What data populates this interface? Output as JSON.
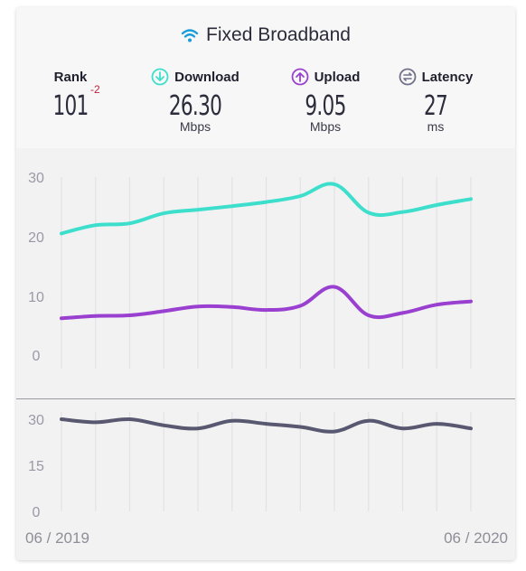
{
  "title": "Fixed Broadband",
  "metrics": {
    "rank": {
      "label": "Rank",
      "value": "101",
      "change": "-2"
    },
    "download": {
      "label": "Download",
      "value": "26.30",
      "unit": "Mbps",
      "color": "#3ddfcc"
    },
    "upload": {
      "label": "Upload",
      "value": "9.05",
      "unit": "Mbps",
      "color": "#9a40d0"
    },
    "latency": {
      "label": "Latency",
      "value": "27",
      "unit": "ms",
      "color": "#585870"
    }
  },
  "x_labels": {
    "start": "06 / 2019",
    "end": "06 / 2020"
  },
  "chart_data": [
    {
      "type": "line",
      "x": [
        "06/2019",
        "07/2019",
        "08/2019",
        "09/2019",
        "10/2019",
        "11/2019",
        "12/2019",
        "01/2020",
        "02/2020",
        "03/2020",
        "04/2020",
        "05/2020",
        "06/2020"
      ],
      "ylim": [
        0,
        30
      ],
      "yticks": [
        "30",
        "20",
        "10",
        "0"
      ],
      "grid": "vertical",
      "series": [
        {
          "name": "Download",
          "color": "#3ddfcc",
          "values": [
            20.5,
            21.9,
            22.2,
            23.9,
            24.5,
            25.1,
            25.8,
            26.8,
            28.8,
            24.0,
            24.1,
            25.3,
            26.3
          ]
        },
        {
          "name": "Upload",
          "color": "#9a40d0",
          "values": [
            6.2,
            6.6,
            6.7,
            7.4,
            8.2,
            8.1,
            7.6,
            8.3,
            11.5,
            6.7,
            7.1,
            8.5,
            9.05
          ]
        }
      ]
    },
    {
      "type": "line",
      "x": [
        "06/2019",
        "07/2019",
        "08/2019",
        "09/2019",
        "10/2019",
        "11/2019",
        "12/2019",
        "01/2020",
        "02/2020",
        "03/2020",
        "04/2020",
        "05/2020",
        "06/2020"
      ],
      "ylim": [
        0,
        30
      ],
      "yticks": [
        "30",
        "15",
        "0"
      ],
      "grid": "vertical",
      "series": [
        {
          "name": "Latency",
          "color": "#585870",
          "values": [
            30,
            29,
            30,
            28,
            27,
            29.5,
            28.5,
            27.5,
            26,
            29.5,
            27,
            28.5,
            27
          ]
        }
      ]
    }
  ]
}
